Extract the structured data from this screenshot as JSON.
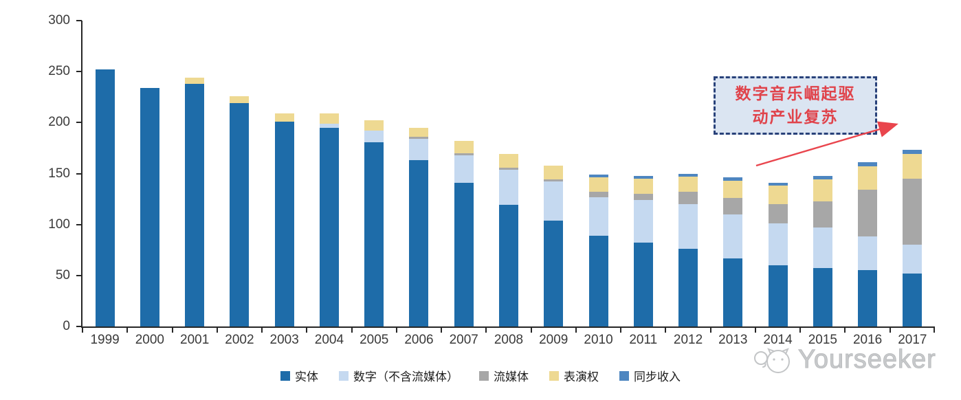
{
  "chart_data": {
    "type": "bar",
    "stacked": true,
    "title": "",
    "xlabel": "",
    "ylabel": "",
    "categories": [
      "1999",
      "2000",
      "2001",
      "2002",
      "2003",
      "2004",
      "2005",
      "2006",
      "2007",
      "2008",
      "2009",
      "2010",
      "2011",
      "2012",
      "2013",
      "2014",
      "2015",
      "2016",
      "2017"
    ],
    "series": [
      {
        "name": "实体",
        "color": "#1e6ca9",
        "values": [
          252,
          234,
          238,
          219,
          201,
          195,
          181,
          163,
          141,
          119,
          104,
          89,
          82,
          76,
          67,
          60,
          57,
          55,
          52
        ]
      },
      {
        "name": "数字（不含流媒体）",
        "color": "#c5d9f0",
        "values": [
          0,
          0,
          0,
          0,
          0,
          4,
          11,
          21,
          27,
          35,
          38,
          38,
          42,
          44,
          43,
          41,
          40,
          33,
          28
        ]
      },
      {
        "name": "流媒体",
        "color": "#a7a7a7",
        "values": [
          0,
          0,
          0,
          0,
          0,
          0,
          0,
          2,
          2,
          2,
          2,
          5,
          6,
          12,
          16,
          19,
          26,
          46,
          65
        ]
      },
      {
        "name": "表演权",
        "color": "#eed992",
        "values": [
          0,
          0,
          6,
          7,
          8,
          10,
          10,
          9,
          12,
          13,
          14,
          14,
          15,
          15,
          17,
          18,
          21,
          23,
          24
        ]
      },
      {
        "name": "同步收入",
        "color": "#4e86c0",
        "values": [
          0,
          0,
          0,
          0,
          0,
          0,
          0,
          0,
          0,
          0,
          0,
          3,
          3,
          3,
          3,
          3,
          4,
          4,
          4
        ]
      }
    ],
    "ylim": [
      0,
      300
    ],
    "yticks": [
      0,
      50,
      100,
      150,
      200,
      250,
      300
    ],
    "grid": false,
    "legend_position": "bottom"
  },
  "annotation": {
    "line1": "数字音乐崛起驱",
    "line2": "动产业复苏",
    "text_color": "#e0434b",
    "box_fill": "#dbe5f2",
    "box_border": "#29427a",
    "arrow_color": "#e9454d"
  },
  "watermark": {
    "text": "Yourseeker"
  },
  "axis": {
    "color": "#262626",
    "label_color": "#3a3a3a"
  }
}
